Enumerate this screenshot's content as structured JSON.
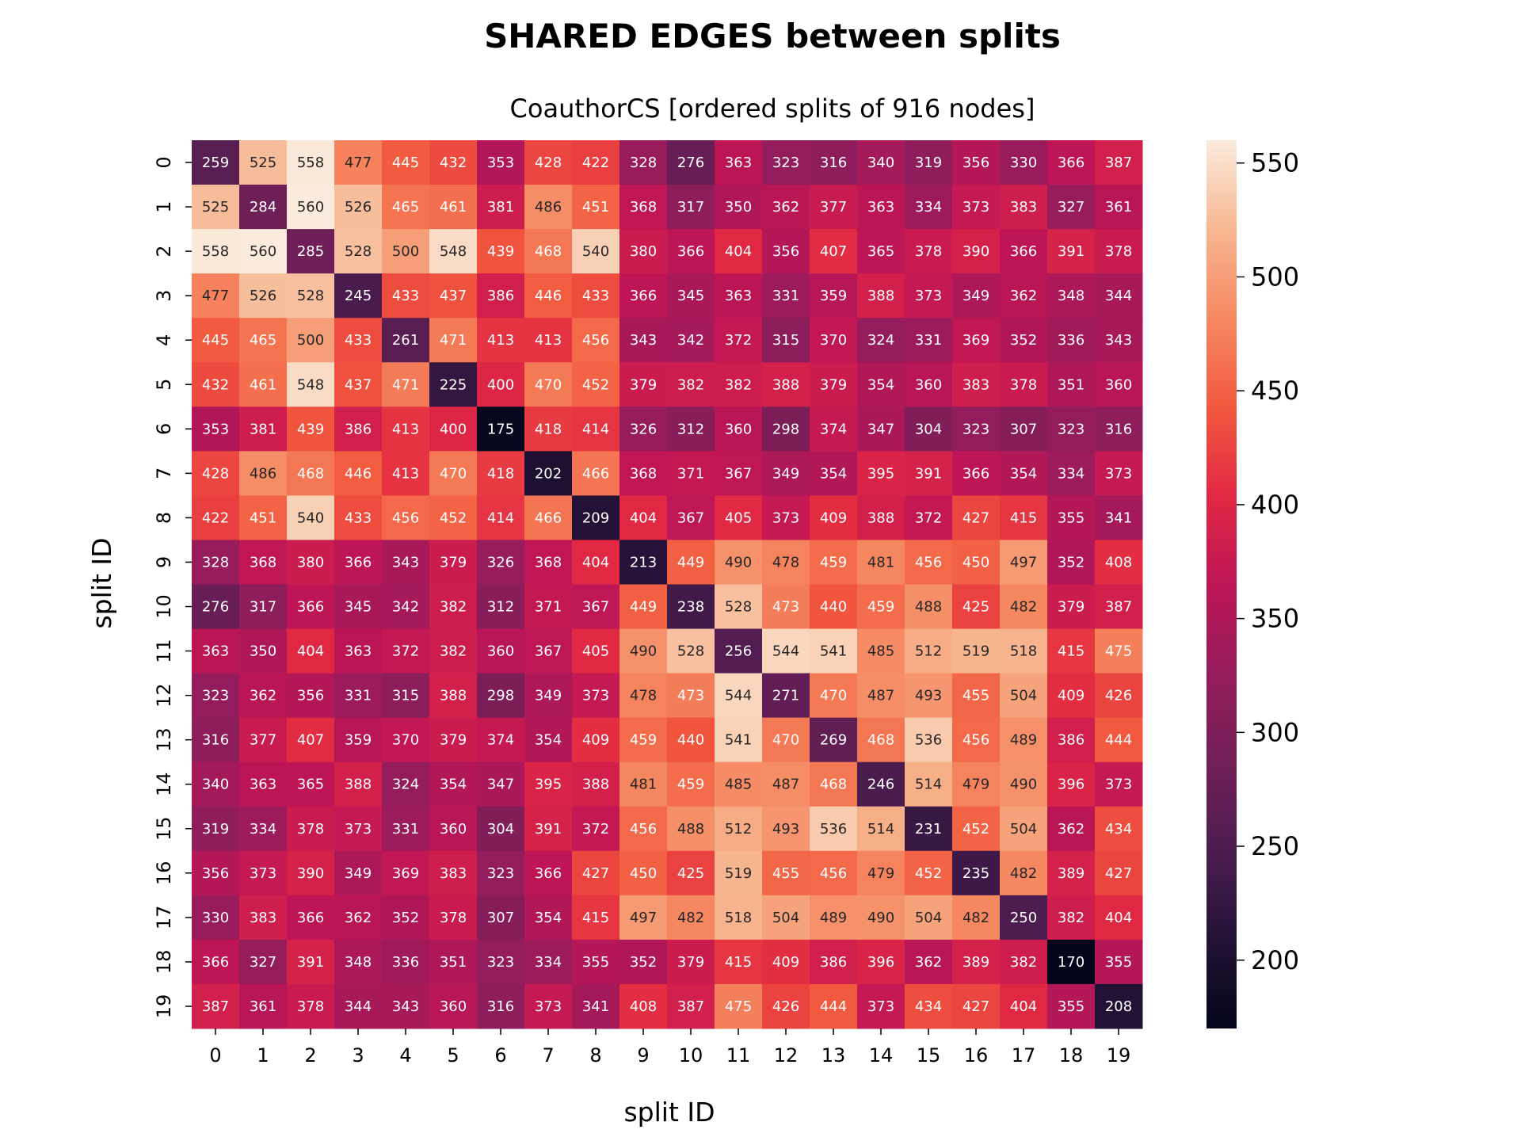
{
  "chart_data": {
    "type": "heatmap",
    "suptitle": "SHARED EDGES between splits",
    "title": "CoauthorCS [ordered splits of 916 nodes]",
    "xlabel": "split ID",
    "ylabel": "split ID",
    "x_ticks": [
      "0",
      "1",
      "2",
      "3",
      "4",
      "5",
      "6",
      "7",
      "8",
      "9",
      "10",
      "11",
      "12",
      "13",
      "14",
      "15",
      "16",
      "17",
      "18",
      "19"
    ],
    "y_ticks": [
      "0",
      "1",
      "2",
      "3",
      "4",
      "5",
      "6",
      "7",
      "8",
      "9",
      "10",
      "11",
      "12",
      "13",
      "14",
      "15",
      "16",
      "17",
      "18",
      "19"
    ],
    "colormap": "rocket",
    "vmin": 170,
    "vmax": 560,
    "colorbar_ticks": [
      200,
      250,
      300,
      350,
      400,
      450,
      500,
      550
    ],
    "values": [
      [
        259,
        525,
        558,
        477,
        445,
        432,
        353,
        428,
        422,
        328,
        276,
        363,
        323,
        316,
        340,
        319,
        356,
        330,
        366,
        387
      ],
      [
        525,
        284,
        560,
        526,
        465,
        461,
        381,
        486,
        451,
        368,
        317,
        350,
        362,
        377,
        363,
        334,
        373,
        383,
        327,
        361
      ],
      [
        558,
        560,
        285,
        528,
        500,
        548,
        439,
        468,
        540,
        380,
        366,
        404,
        356,
        407,
        365,
        378,
        390,
        366,
        391,
        378
      ],
      [
        477,
        526,
        528,
        245,
        433,
        437,
        386,
        446,
        433,
        366,
        345,
        363,
        331,
        359,
        388,
        373,
        349,
        362,
        348,
        344
      ],
      [
        445,
        465,
        500,
        433,
        261,
        471,
        413,
        413,
        456,
        343,
        342,
        372,
        315,
        370,
        324,
        331,
        369,
        352,
        336,
        343
      ],
      [
        432,
        461,
        548,
        437,
        471,
        225,
        400,
        470,
        452,
        379,
        382,
        382,
        388,
        379,
        354,
        360,
        383,
        378,
        351,
        360
      ],
      [
        353,
        381,
        439,
        386,
        413,
        400,
        175,
        418,
        414,
        326,
        312,
        360,
        298,
        374,
        347,
        304,
        323,
        307,
        323,
        316
      ],
      [
        428,
        486,
        468,
        446,
        413,
        470,
        418,
        202,
        466,
        368,
        371,
        367,
        349,
        354,
        395,
        391,
        366,
        354,
        334,
        373
      ],
      [
        422,
        451,
        540,
        433,
        456,
        452,
        414,
        466,
        209,
        404,
        367,
        405,
        373,
        409,
        388,
        372,
        427,
        415,
        355,
        341
      ],
      [
        328,
        368,
        380,
        366,
        343,
        379,
        326,
        368,
        404,
        213,
        449,
        490,
        478,
        459,
        481,
        456,
        450,
        497,
        352,
        408
      ],
      [
        276,
        317,
        366,
        345,
        342,
        382,
        312,
        371,
        367,
        449,
        238,
        528,
        473,
        440,
        459,
        488,
        425,
        482,
        379,
        387
      ],
      [
        363,
        350,
        404,
        363,
        372,
        382,
        360,
        367,
        405,
        490,
        528,
        256,
        544,
        541,
        485,
        512,
        519,
        518,
        415,
        475
      ],
      [
        323,
        362,
        356,
        331,
        315,
        388,
        298,
        349,
        373,
        478,
        473,
        544,
        271,
        470,
        487,
        493,
        455,
        504,
        409,
        426
      ],
      [
        316,
        377,
        407,
        359,
        370,
        379,
        374,
        354,
        409,
        459,
        440,
        541,
        470,
        269,
        468,
        536,
        456,
        489,
        386,
        444
      ],
      [
        340,
        363,
        365,
        388,
        324,
        354,
        347,
        395,
        388,
        481,
        459,
        485,
        487,
        468,
        246,
        514,
        479,
        490,
        396,
        373
      ],
      [
        319,
        334,
        378,
        373,
        331,
        360,
        304,
        391,
        372,
        456,
        488,
        512,
        493,
        536,
        514,
        231,
        452,
        504,
        362,
        434
      ],
      [
        356,
        373,
        390,
        349,
        369,
        383,
        323,
        366,
        427,
        450,
        425,
        519,
        455,
        456,
        479,
        452,
        235,
        482,
        389,
        427
      ],
      [
        330,
        383,
        366,
        362,
        352,
        378,
        307,
        354,
        415,
        497,
        482,
        518,
        504,
        489,
        490,
        504,
        482,
        250,
        382,
        404
      ],
      [
        366,
        327,
        391,
        348,
        336,
        351,
        323,
        334,
        355,
        352,
        379,
        415,
        409,
        386,
        396,
        362,
        389,
        382,
        170,
        355
      ],
      [
        387,
        361,
        378,
        344,
        343,
        360,
        316,
        373,
        341,
        408,
        387,
        475,
        426,
        444,
        373,
        434,
        427,
        404,
        355,
        208
      ]
    ],
    "grid": false,
    "legend": "colorbar-right"
  }
}
